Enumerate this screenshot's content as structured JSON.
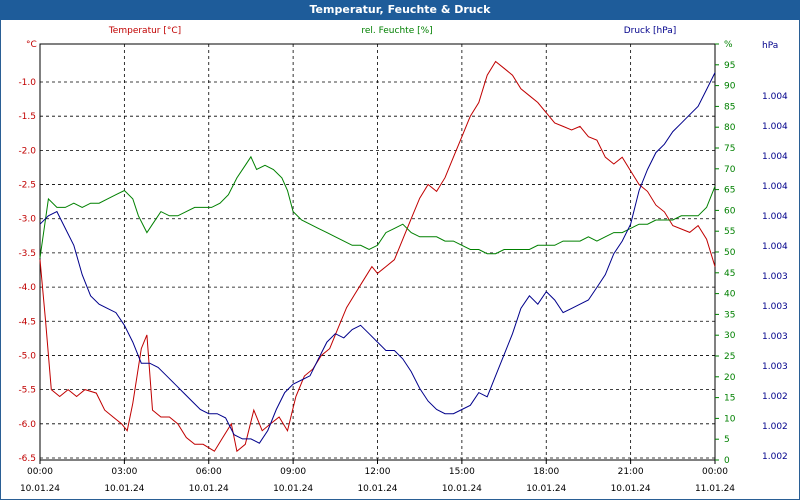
{
  "window": {
    "title": "Temperatur, Feuchte & Druck"
  },
  "colors": {
    "temperature": "#c00000",
    "humidity": "#008000",
    "pressure": "#00008b",
    "titlebar": "#1e5c9a",
    "grid": "#000000"
  },
  "chart_data": {
    "type": "line",
    "title": "Temperatur, Feuchte & Druck",
    "grid": true,
    "x_ticks": [
      {
        "hours": 0,
        "time": "00:00",
        "date": "10.01.24"
      },
      {
        "hours": 3,
        "time": "03:00",
        "date": "10.01.24"
      },
      {
        "hours": 6,
        "time": "06:00",
        "date": "10.01.24"
      },
      {
        "hours": 9,
        "time": "09:00",
        "date": "10.01.24"
      },
      {
        "hours": 12,
        "time": "12:00",
        "date": "10.01.24"
      },
      {
        "hours": 15,
        "time": "15:00",
        "date": "10.01.24"
      },
      {
        "hours": 18,
        "time": "18:00",
        "date": "10.01.24"
      },
      {
        "hours": 21,
        "time": "21:00",
        "date": "10.01.24"
      },
      {
        "hours": 24,
        "time": "00:00",
        "date": "11.01.24"
      }
    ],
    "axes": {
      "temperature": {
        "unit": "°C",
        "range": [
          -6.5,
          -0.5
        ],
        "ticks": [
          "-1.0",
          "-1.5",
          "-2.0",
          "-2.5",
          "-3.0",
          "-3.5",
          "-4.0",
          "-4.5",
          "-5.0",
          "-5.5",
          "-6.0",
          "-6.5"
        ]
      },
      "humidity": {
        "unit": "%",
        "range": [
          0,
          95
        ],
        "ticks": [
          "0",
          "5",
          "10",
          "15",
          "20",
          "25",
          "30",
          "35",
          "40",
          "45",
          "50",
          "55",
          "60",
          "65",
          "70",
          "75",
          "80",
          "85",
          "90",
          "95",
          "%"
        ]
      },
      "pressure": {
        "unit": "hPa",
        "ticks": [
          "1.002",
          "1.002",
          "1.002",
          "1.003",
          "1.003",
          "1.003",
          "1.003",
          "1.004",
          "1.004",
          "1.004",
          "1.004",
          "1.004",
          "1.004",
          "hPa"
        ]
      }
    },
    "series": [
      {
        "name": "Temperatur [°C]",
        "axis": "temperature",
        "points": [
          [
            0,
            -3.6
          ],
          [
            0.2,
            -4.5
          ],
          [
            0.4,
            -5.5
          ],
          [
            0.7,
            -5.6
          ],
          [
            1,
            -5.5
          ],
          [
            1.3,
            -5.6
          ],
          [
            1.6,
            -5.5
          ],
          [
            2,
            -5.55
          ],
          [
            2.3,
            -5.8
          ],
          [
            2.6,
            -5.9
          ],
          [
            2.9,
            -6.0
          ],
          [
            3.1,
            -6.1
          ],
          [
            3.3,
            -5.7
          ],
          [
            3.6,
            -4.9
          ],
          [
            3.8,
            -4.7
          ],
          [
            4.0,
            -5.8
          ],
          [
            4.3,
            -5.9
          ],
          [
            4.6,
            -5.9
          ],
          [
            4.9,
            -6.0
          ],
          [
            5.2,
            -6.2
          ],
          [
            5.5,
            -6.3
          ],
          [
            5.8,
            -6.3
          ],
          [
            6.2,
            -6.4
          ],
          [
            6.5,
            -6.2
          ],
          [
            6.8,
            -6.0
          ],
          [
            7.0,
            -6.4
          ],
          [
            7.3,
            -6.3
          ],
          [
            7.6,
            -5.8
          ],
          [
            7.9,
            -6.1
          ],
          [
            8.2,
            -6.0
          ],
          [
            8.5,
            -5.9
          ],
          [
            8.8,
            -6.1
          ],
          [
            9.1,
            -5.6
          ],
          [
            9.4,
            -5.3
          ],
          [
            9.7,
            -5.2
          ],
          [
            10.0,
            -5.0
          ],
          [
            10.3,
            -4.9
          ],
          [
            10.6,
            -4.6
          ],
          [
            10.9,
            -4.3
          ],
          [
            11.2,
            -4.1
          ],
          [
            11.5,
            -3.9
          ],
          [
            11.8,
            -3.7
          ],
          [
            12.0,
            -3.8
          ],
          [
            12.3,
            -3.7
          ],
          [
            12.6,
            -3.6
          ],
          [
            12.9,
            -3.3
          ],
          [
            13.2,
            -3.0
          ],
          [
            13.5,
            -2.7
          ],
          [
            13.8,
            -2.5
          ],
          [
            14.1,
            -2.6
          ],
          [
            14.4,
            -2.4
          ],
          [
            14.7,
            -2.1
          ],
          [
            15.0,
            -1.8
          ],
          [
            15.3,
            -1.5
          ],
          [
            15.6,
            -1.3
          ],
          [
            15.9,
            -0.9
          ],
          [
            16.2,
            -0.7
          ],
          [
            16.5,
            -0.8
          ],
          [
            16.8,
            -0.9
          ],
          [
            17.1,
            -1.1
          ],
          [
            17.4,
            -1.2
          ],
          [
            17.7,
            -1.3
          ],
          [
            18.0,
            -1.45
          ],
          [
            18.3,
            -1.6
          ],
          [
            18.6,
            -1.65
          ],
          [
            18.9,
            -1.7
          ],
          [
            19.2,
            -1.65
          ],
          [
            19.5,
            -1.8
          ],
          [
            19.8,
            -1.85
          ],
          [
            20.1,
            -2.1
          ],
          [
            20.4,
            -2.2
          ],
          [
            20.7,
            -2.1
          ],
          [
            21.0,
            -2.3
          ],
          [
            21.3,
            -2.5
          ],
          [
            21.6,
            -2.6
          ],
          [
            21.9,
            -2.8
          ],
          [
            22.2,
            -2.9
          ],
          [
            22.5,
            -3.1
          ],
          [
            22.8,
            -3.15
          ],
          [
            23.1,
            -3.2
          ],
          [
            23.4,
            -3.1
          ],
          [
            23.7,
            -3.3
          ],
          [
            24.0,
            -3.7
          ]
        ]
      },
      {
        "name": "rel. Feuchte [%]",
        "axis": "humidity",
        "points": [
          [
            0,
            48
          ],
          [
            0.3,
            62
          ],
          [
            0.6,
            60
          ],
          [
            0.9,
            60
          ],
          [
            1.2,
            61
          ],
          [
            1.5,
            60
          ],
          [
            1.8,
            61
          ],
          [
            2.1,
            61
          ],
          [
            2.4,
            62
          ],
          [
            2.7,
            63
          ],
          [
            3.0,
            64
          ],
          [
            3.3,
            62
          ],
          [
            3.5,
            58
          ],
          [
            3.8,
            54
          ],
          [
            4.0,
            56
          ],
          [
            4.3,
            59
          ],
          [
            4.6,
            58
          ],
          [
            4.9,
            58
          ],
          [
            5.2,
            59
          ],
          [
            5.5,
            60
          ],
          [
            5.8,
            60
          ],
          [
            6.1,
            60
          ],
          [
            6.4,
            61
          ],
          [
            6.7,
            63
          ],
          [
            7.0,
            67
          ],
          [
            7.3,
            70
          ],
          [
            7.5,
            72
          ],
          [
            7.7,
            69
          ],
          [
            8.0,
            70
          ],
          [
            8.3,
            69
          ],
          [
            8.6,
            67
          ],
          [
            8.8,
            64
          ],
          [
            9.0,
            59
          ],
          [
            9.3,
            57
          ],
          [
            9.6,
            56
          ],
          [
            9.9,
            55
          ],
          [
            10.2,
            54
          ],
          [
            10.5,
            53
          ],
          [
            10.8,
            52
          ],
          [
            11.1,
            51
          ],
          [
            11.4,
            51
          ],
          [
            11.7,
            50
          ],
          [
            12.0,
            51
          ],
          [
            12.3,
            54
          ],
          [
            12.6,
            55
          ],
          [
            12.9,
            56
          ],
          [
            13.2,
            54
          ],
          [
            13.5,
            53
          ],
          [
            13.8,
            53
          ],
          [
            14.1,
            53
          ],
          [
            14.4,
            52
          ],
          [
            14.7,
            52
          ],
          [
            15.0,
            51
          ],
          [
            15.3,
            50
          ],
          [
            15.6,
            50
          ],
          [
            15.9,
            49
          ],
          [
            16.2,
            49
          ],
          [
            16.5,
            50
          ],
          [
            16.8,
            50
          ],
          [
            17.1,
            50
          ],
          [
            17.4,
            50
          ],
          [
            17.7,
            51
          ],
          [
            18.0,
            51
          ],
          [
            18.3,
            51
          ],
          [
            18.6,
            52
          ],
          [
            18.9,
            52
          ],
          [
            19.2,
            52
          ],
          [
            19.5,
            53
          ],
          [
            19.8,
            52
          ],
          [
            20.1,
            53
          ],
          [
            20.4,
            54
          ],
          [
            20.7,
            54
          ],
          [
            21.0,
            55
          ],
          [
            21.3,
            56
          ],
          [
            21.6,
            56
          ],
          [
            21.9,
            57
          ],
          [
            22.2,
            57
          ],
          [
            22.5,
            57
          ],
          [
            22.8,
            58
          ],
          [
            23.1,
            58
          ],
          [
            23.4,
            58
          ],
          [
            23.7,
            60
          ],
          [
            24.0,
            65
          ]
        ]
      },
      {
        "name": "Druck [hPa]",
        "axis": "pressure",
        "points": [
          [
            0,
            56
          ],
          [
            0.3,
            58
          ],
          [
            0.6,
            59
          ],
          [
            0.9,
            55
          ],
          [
            1.2,
            51
          ],
          [
            1.5,
            44
          ],
          [
            1.8,
            39
          ],
          [
            2.1,
            37
          ],
          [
            2.4,
            36
          ],
          [
            2.7,
            35
          ],
          [
            3.0,
            32
          ],
          [
            3.3,
            28
          ],
          [
            3.6,
            23
          ],
          [
            3.9,
            23
          ],
          [
            4.2,
            22
          ],
          [
            4.5,
            20
          ],
          [
            4.8,
            18
          ],
          [
            5.1,
            16
          ],
          [
            5.4,
            14
          ],
          [
            5.7,
            12
          ],
          [
            6.0,
            11
          ],
          [
            6.3,
            11
          ],
          [
            6.6,
            10
          ],
          [
            6.9,
            6
          ],
          [
            7.2,
            5
          ],
          [
            7.5,
            5
          ],
          [
            7.8,
            4
          ],
          [
            8.1,
            7
          ],
          [
            8.4,
            12
          ],
          [
            8.7,
            16
          ],
          [
            9.0,
            18
          ],
          [
            9.3,
            19
          ],
          [
            9.6,
            20
          ],
          [
            9.9,
            24
          ],
          [
            10.2,
            28
          ],
          [
            10.5,
            30
          ],
          [
            10.8,
            29
          ],
          [
            11.1,
            31
          ],
          [
            11.4,
            32
          ],
          [
            11.7,
            30
          ],
          [
            12.0,
            28
          ],
          [
            12.3,
            26
          ],
          [
            12.6,
            26
          ],
          [
            12.9,
            24
          ],
          [
            13.2,
            21
          ],
          [
            13.5,
            17
          ],
          [
            13.8,
            14
          ],
          [
            14.1,
            12
          ],
          [
            14.4,
            11
          ],
          [
            14.7,
            11
          ],
          [
            15.0,
            12
          ],
          [
            15.3,
            13
          ],
          [
            15.6,
            16
          ],
          [
            15.9,
            15
          ],
          [
            16.2,
            20
          ],
          [
            16.5,
            25
          ],
          [
            16.8,
            30
          ],
          [
            17.1,
            36
          ],
          [
            17.4,
            39
          ],
          [
            17.7,
            37
          ],
          [
            18.0,
            40
          ],
          [
            18.3,
            38
          ],
          [
            18.6,
            35
          ],
          [
            18.9,
            36
          ],
          [
            19.2,
            37
          ],
          [
            19.5,
            38
          ],
          [
            19.8,
            41
          ],
          [
            20.1,
            44
          ],
          [
            20.4,
            49
          ],
          [
            20.7,
            52
          ],
          [
            21.0,
            56
          ],
          [
            21.3,
            64
          ],
          [
            21.6,
            69
          ],
          [
            21.9,
            73
          ],
          [
            22.2,
            75
          ],
          [
            22.5,
            78
          ],
          [
            22.8,
            80
          ],
          [
            23.1,
            82
          ],
          [
            23.4,
            84
          ],
          [
            23.7,
            88
          ],
          [
            24.0,
            92
          ]
        ]
      }
    ]
  }
}
